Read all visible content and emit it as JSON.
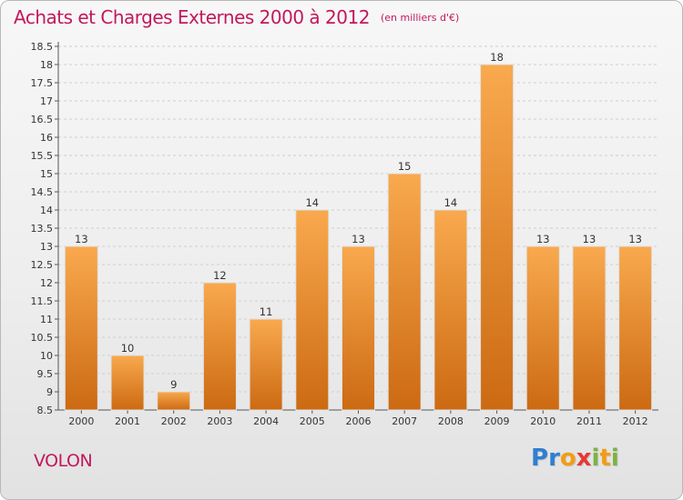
{
  "header": {
    "title": "Achats et Charges Externes 2000 à 2012",
    "subtitle": "(en milliers d'€)"
  },
  "footer": {
    "commune": "VOLON",
    "logo_text": "Proxiti",
    "logo_letters": [
      {
        "ch": "P",
        "color": "#2e7fd1"
      },
      {
        "ch": "r",
        "color": "#2e7fd1"
      },
      {
        "ch": "o",
        "color": "#f39c12"
      },
      {
        "ch": "x",
        "color": "#e53935"
      },
      {
        "ch": "i",
        "color": "#7cb342"
      },
      {
        "ch": "t",
        "color": "#f39c12"
      },
      {
        "ch": "i",
        "color": "#7cb342"
      }
    ]
  },
  "colors": {
    "accent": "#c2185b",
    "bar_top": "#f9a94e",
    "bar_bottom": "#cc6a12",
    "grid": "#cfcfcf"
  },
  "chart_data": {
    "type": "bar",
    "categories": [
      "2000",
      "2001",
      "2002",
      "2003",
      "2004",
      "2005",
      "2006",
      "2007",
      "2008",
      "2009",
      "2010",
      "2011",
      "2012"
    ],
    "values": [
      13,
      10,
      9,
      12,
      11,
      14,
      13,
      15,
      14,
      18,
      13,
      13,
      13
    ],
    "data_labels": [
      "13",
      "10",
      "9",
      "12",
      "11",
      "14",
      "13",
      "15",
      "14",
      "18",
      "13",
      "13",
      "13"
    ],
    "yticks": [
      "8.5",
      "9",
      "9.5",
      "10",
      "10.5",
      "11",
      "11.5",
      "12",
      "12.5",
      "13",
      "13.5",
      "14",
      "14.5",
      "15",
      "15.5",
      "16",
      "16.5",
      "17",
      "17.5",
      "18",
      "18.5"
    ],
    "ylim": [
      8.5,
      18.5
    ],
    "grid": true,
    "legend": "none"
  }
}
